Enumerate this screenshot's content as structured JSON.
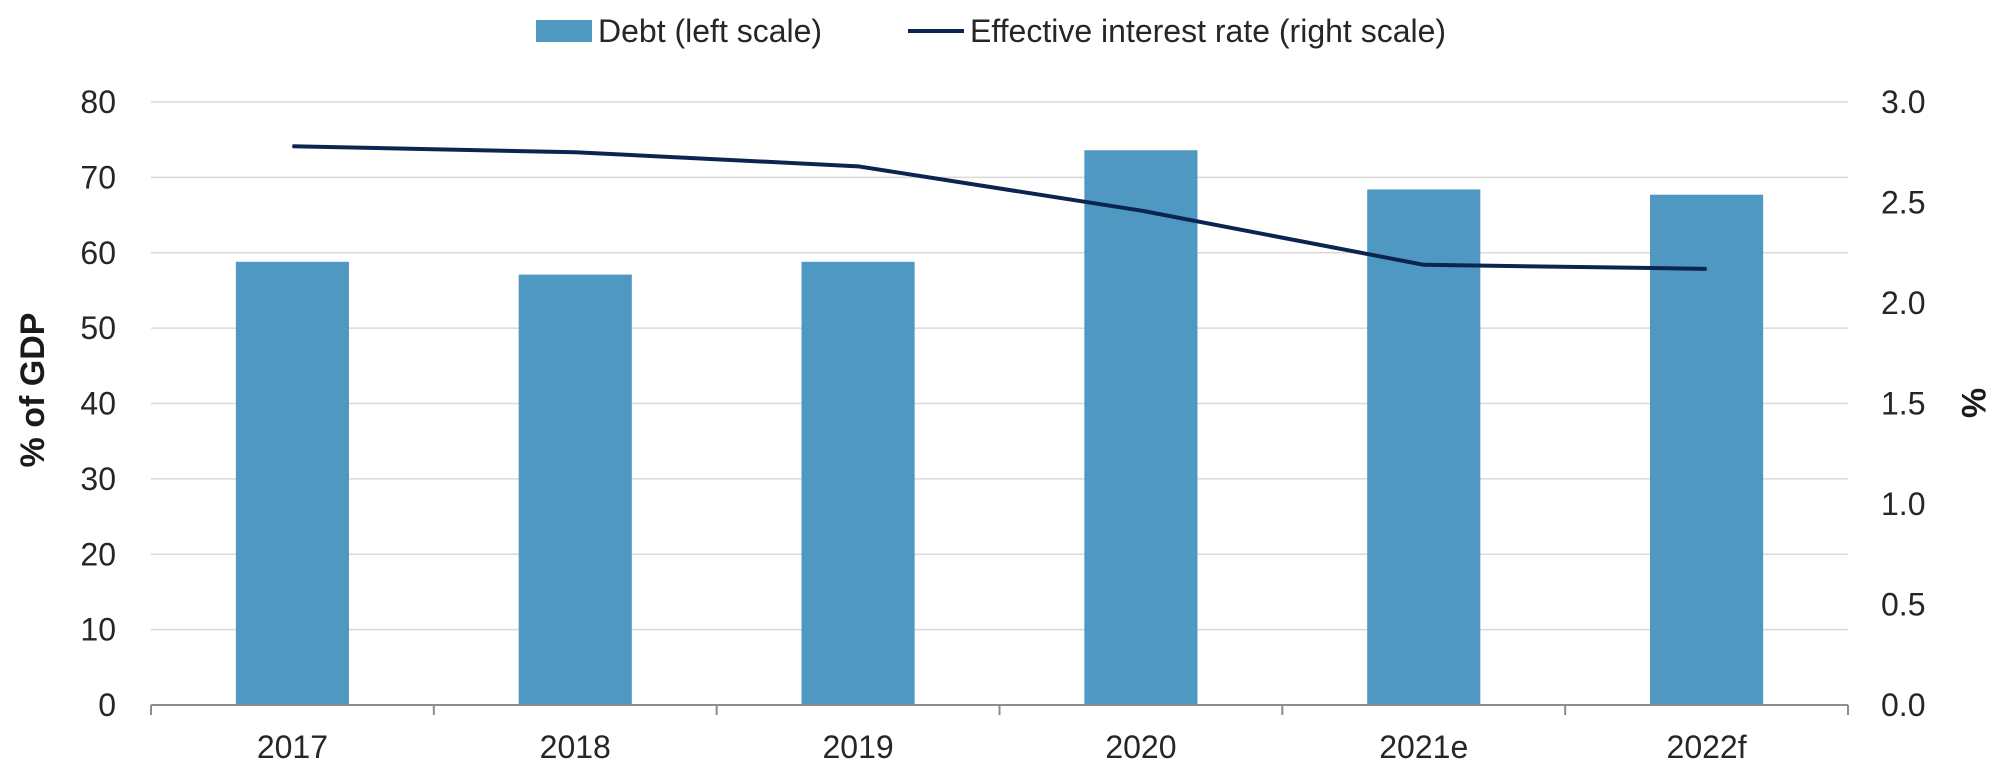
{
  "chart_data": {
    "type": "bar",
    "categories": [
      "2017",
      "2018",
      "2019",
      "2020",
      "2021e",
      "2022f"
    ],
    "series": [
      {
        "name": "Debt (left scale)",
        "type": "bar",
        "axis": "left",
        "color": "#4f98c1",
        "values": [
          58.8,
          57.1,
          58.8,
          73.6,
          68.4,
          67.7
        ]
      },
      {
        "name": "Effective interest rate (right scale)",
        "type": "line",
        "axis": "right",
        "color": "#0b2550",
        "values": [
          2.78,
          2.75,
          2.68,
          2.46,
          2.19,
          2.17
        ]
      }
    ],
    "ylabel": "% of GDP",
    "y2label": "%",
    "ylim": [
      0,
      80
    ],
    "y2lim": [
      0,
      3.0
    ],
    "yticks": [
      "0",
      "10",
      "20",
      "30",
      "40",
      "50",
      "60",
      "70",
      "80"
    ],
    "y2ticks": [
      "0.0",
      "0.5",
      "1.0",
      "1.5",
      "2.0",
      "2.5",
      "3.0"
    ],
    "grid": true,
    "legend_position": "top-center",
    "gridline_color": "#d9d9d9",
    "axis_color": "#8c8c8c"
  }
}
